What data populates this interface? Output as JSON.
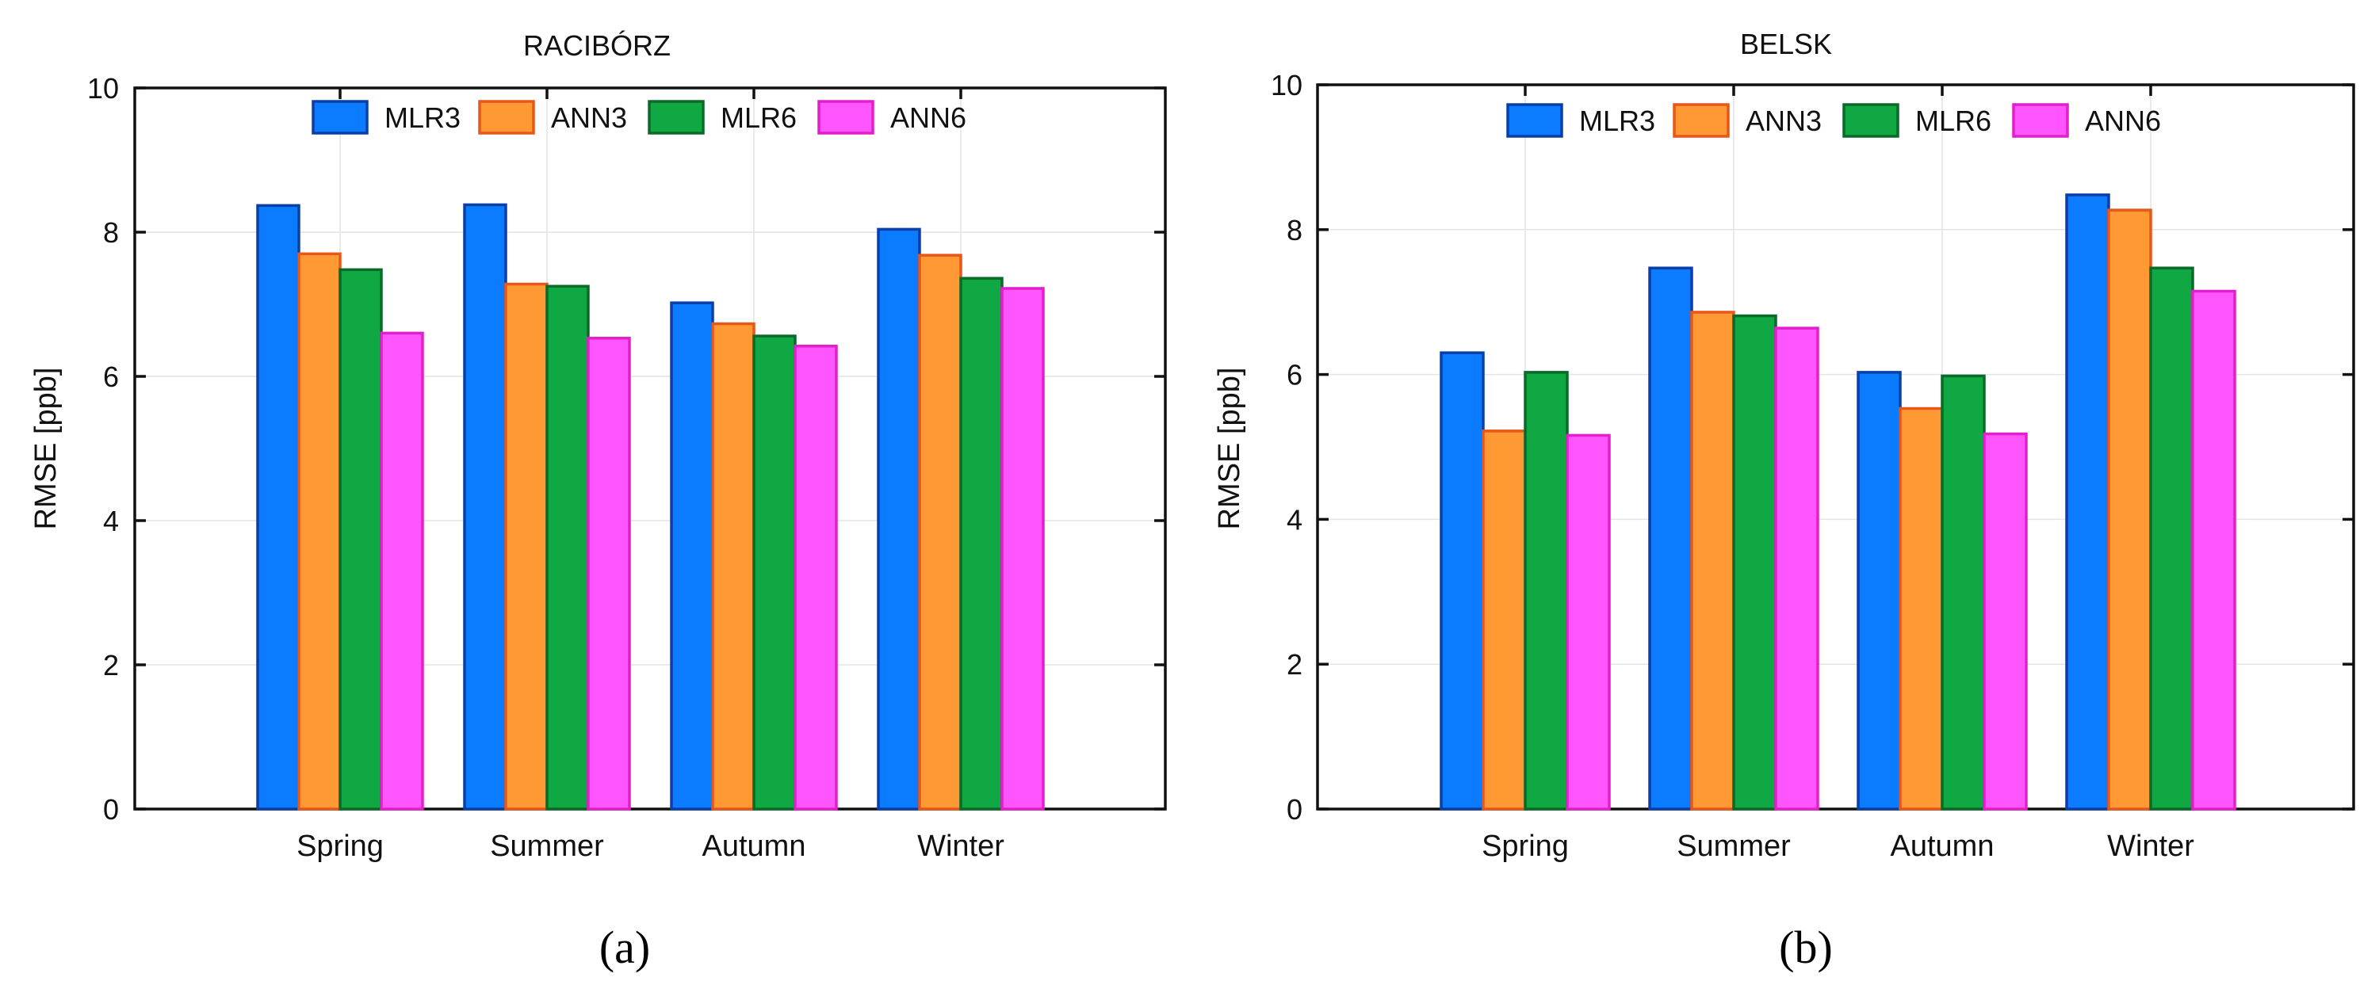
{
  "chart_data": [
    {
      "type": "bar",
      "title": "RACIBÓRZ",
      "caption": "(a)",
      "xlabel": "",
      "ylabel": "RMSE [ppb]",
      "ylim": [
        0,
        10
      ],
      "yticks": [
        0,
        2,
        4,
        6,
        8,
        10
      ],
      "categories": [
        "Spring",
        "Summer",
        "Autumn",
        "Winter"
      ],
      "legend_position": "top-center",
      "series": [
        {
          "name": "MLR3",
          "fill": "#0b7bff",
          "stroke": "#0b3fa8",
          "values": [
            8.37,
            8.38,
            7.02,
            8.04
          ]
        },
        {
          "name": "ANN3",
          "fill": "#ff9933",
          "stroke": "#e8561a",
          "values": [
            7.7,
            7.28,
            6.73,
            7.68
          ]
        },
        {
          "name": "MLR6",
          "fill": "#0fa843",
          "stroke": "#0a6a28",
          "values": [
            7.48,
            7.25,
            6.56,
            7.36
          ]
        },
        {
          "name": "ANN6",
          "fill": "#ff55ff",
          "stroke": "#e21fc8",
          "values": [
            6.6,
            6.53,
            6.42,
            7.22
          ]
        }
      ]
    },
    {
      "type": "bar",
      "title": "BELSK",
      "caption": "(b)",
      "xlabel": "",
      "ylabel": "RMSE [ppb]",
      "ylim": [
        0,
        10
      ],
      "yticks": [
        0,
        2,
        4,
        6,
        8,
        10
      ],
      "categories": [
        "Spring",
        "Summer",
        "Autumn",
        "Winter"
      ],
      "legend_position": "top-center",
      "series": [
        {
          "name": "MLR3",
          "fill": "#0b7bff",
          "stroke": "#0b3fa8",
          "values": [
            6.3,
            7.47,
            6.03,
            8.48
          ]
        },
        {
          "name": "ANN3",
          "fill": "#ff9933",
          "stroke": "#e8561a",
          "values": [
            5.22,
            6.86,
            5.53,
            8.27
          ]
        },
        {
          "name": "MLR6",
          "fill": "#0fa843",
          "stroke": "#0a6a28",
          "values": [
            6.03,
            6.81,
            5.98,
            7.47
          ]
        },
        {
          "name": "ANN6",
          "fill": "#ff55ff",
          "stroke": "#e21fc8",
          "values": [
            5.16,
            6.64,
            5.18,
            7.15
          ]
        }
      ]
    }
  ]
}
